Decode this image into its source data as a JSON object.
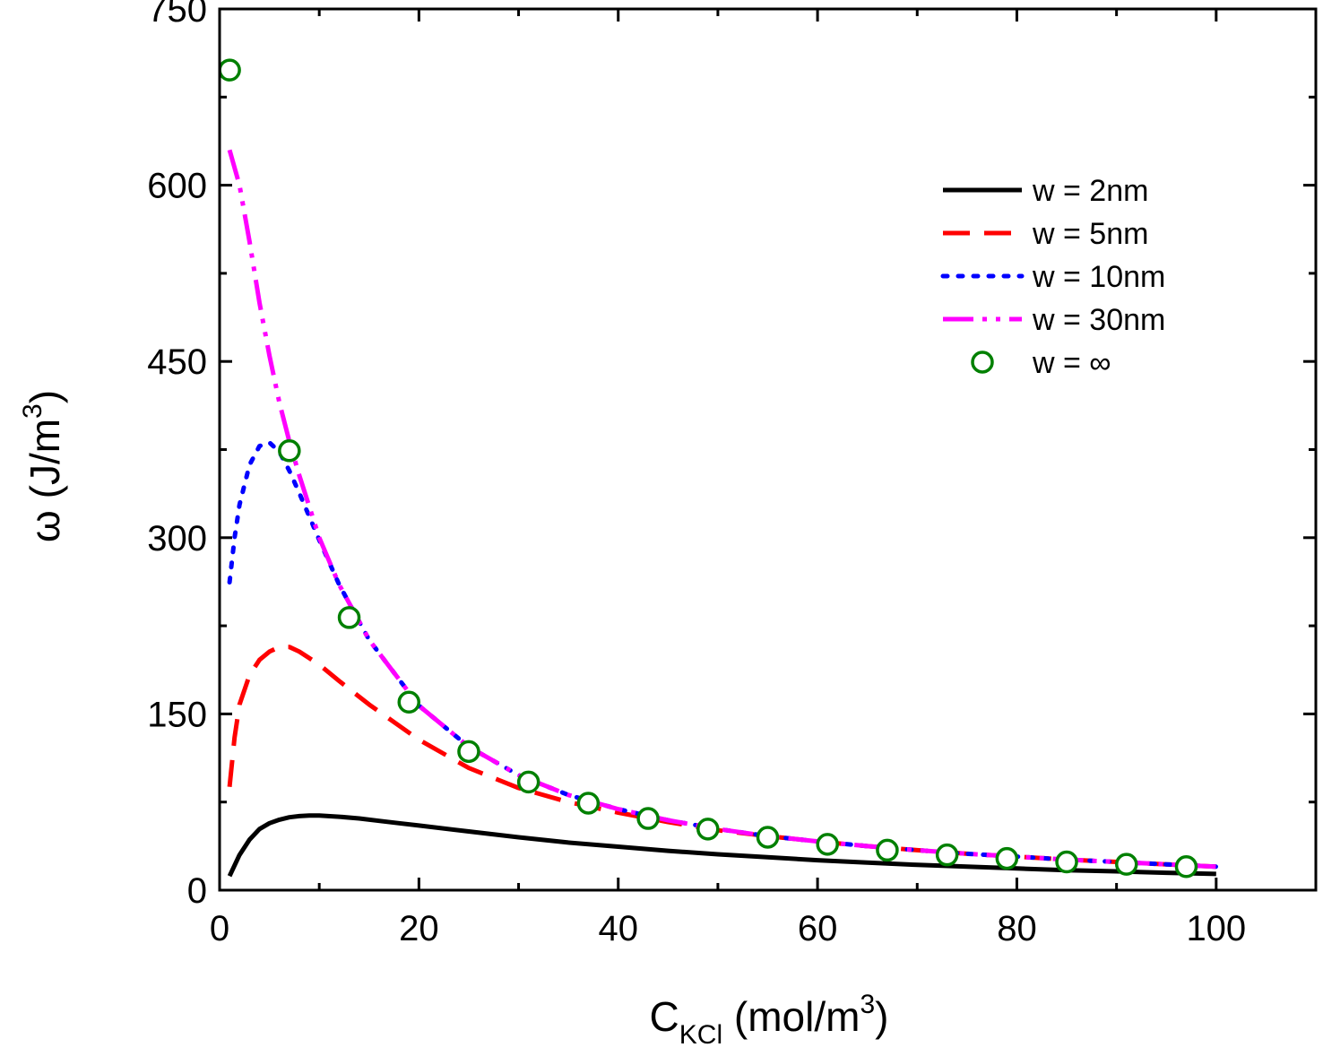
{
  "chart_data": {
    "type": "line",
    "title": "",
    "xlabel": "C",
    "xlabel_sub": "KCl",
    "xlabel_unit": " (mol/m",
    "xlabel_unit_sup": "3",
    "xlabel_unit_close": ")",
    "ylabel_symbol": "ω",
    "ylabel_unit": " (J/m",
    "ylabel_unit_sup": "3",
    "ylabel_unit_close": ")",
    "xlim": [
      0,
      110
    ],
    "ylim": [
      0,
      750
    ],
    "xticks": [
      0,
      20,
      40,
      60,
      80,
      100
    ],
    "xtick_labels": [
      "0",
      "20",
      "40",
      "60",
      "80",
      "100"
    ],
    "yticks": [
      0,
      150,
      300,
      450,
      600,
      750
    ],
    "ytick_labels": [
      "0",
      "150",
      "300",
      "450",
      "600",
      "750"
    ],
    "legend_position": "top-right",
    "series": [
      {
        "name": "w = 2nm",
        "style": "solid",
        "color": "#000000",
        "x": [
          1,
          2,
          3,
          4,
          5,
          6,
          7,
          8,
          9,
          10,
          12,
          14,
          16,
          18,
          20,
          25,
          30,
          35,
          40,
          45,
          50,
          55,
          60,
          65,
          70,
          75,
          80,
          85,
          90,
          95,
          100
        ],
        "y": [
          12,
          30,
          43,
          52,
          57,
          60,
          62,
          63,
          63.5,
          63.5,
          62.5,
          61,
          59,
          57,
          55,
          50,
          45,
          40.5,
          37,
          33.5,
          30.5,
          28,
          25.5,
          23.5,
          21.5,
          20,
          18.5,
          17,
          16,
          14.8,
          13.8
        ]
      },
      {
        "name": "w = 5nm",
        "style": "dashed",
        "color": "#ff0000",
        "x": [
          1,
          1.5,
          2,
          3,
          4,
          5,
          6,
          7,
          8,
          10,
          12,
          15,
          20,
          25,
          30,
          35,
          40,
          45,
          50,
          55,
          60,
          65,
          70,
          75,
          80,
          85,
          90,
          95,
          100
        ],
        "y": [
          88,
          130,
          158,
          183,
          196,
          203,
          207,
          207,
          203,
          192,
          178,
          158,
          128,
          104,
          87,
          75,
          66,
          58,
          51,
          46,
          41.5,
          37.5,
          34,
          31,
          28.5,
          26,
          24,
          22,
          20
        ]
      },
      {
        "name": "w = 10nm",
        "style": "dotted",
        "color": "#0000ff",
        "x": [
          1,
          1.5,
          2,
          3,
          4,
          5,
          6,
          7,
          8,
          10,
          12,
          15,
          20,
          25,
          30,
          35,
          40,
          45,
          50,
          55,
          60,
          65,
          70,
          75,
          80,
          85,
          90,
          95,
          100
        ],
        "y": [
          262,
          300,
          328,
          362,
          378,
          381,
          373,
          357,
          338,
          298,
          260,
          213,
          157,
          122,
          98,
          81,
          69,
          59.5,
          52,
          46,
          41.5,
          37.5,
          34,
          31,
          28.5,
          26,
          24,
          22,
          20
        ]
      },
      {
        "name": "w = 30nm",
        "style": "dash-dot-dot",
        "color": "#ff00ff",
        "x": [
          1,
          2,
          3,
          4,
          5,
          6,
          7,
          8,
          10,
          12,
          15,
          20,
          25,
          30,
          35,
          40,
          45,
          50,
          55,
          60,
          65,
          70,
          75,
          80,
          85,
          90,
          95,
          100
        ],
        "y": [
          630,
          600,
          552,
          500,
          455,
          415,
          382,
          353,
          300,
          260,
          213,
          157,
          122,
          98,
          81,
          69,
          59.5,
          52,
          46,
          41.5,
          37.5,
          34,
          31,
          28.5,
          26,
          24,
          22,
          20
        ]
      },
      {
        "name": "w = ∞",
        "style": "markers",
        "color": "#008000",
        "x": [
          1,
          7,
          13,
          19,
          25,
          31,
          37,
          43,
          49,
          55,
          61,
          67,
          73,
          79,
          85,
          91,
          97
        ],
        "y": [
          698,
          374,
          232,
          160,
          118,
          92,
          74,
          61,
          52,
          45,
          39,
          34,
          30,
          27,
          24,
          22,
          20
        ]
      }
    ]
  }
}
